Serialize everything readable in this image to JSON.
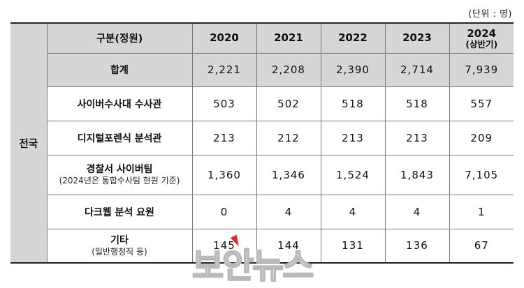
{
  "unit_label": "(단위 : 명)",
  "region": "전국",
  "header": {
    "category": "구분(정원)",
    "years": [
      {
        "main": "2020",
        "sub": ""
      },
      {
        "main": "2021",
        "sub": ""
      },
      {
        "main": "2022",
        "sub": ""
      },
      {
        "main": "2023",
        "sub": ""
      },
      {
        "main": "2024",
        "sub": "(상반기)"
      }
    ]
  },
  "rows": [
    {
      "label": "합계",
      "sub": "",
      "values": [
        "2,221",
        "2,208",
        "2,390",
        "2,714",
        "7,939"
      ]
    },
    {
      "label": "사이버수사대 수사관",
      "sub": "",
      "values": [
        "503",
        "502",
        "518",
        "518",
        "557"
      ]
    },
    {
      "label": "디지털포렌식 분석관",
      "sub": "",
      "values": [
        "213",
        "212",
        "213",
        "213",
        "209"
      ]
    },
    {
      "label": "경찰서 사이버팀",
      "sub": "(2024년은 통합수사팀 현원 기준)",
      "values": [
        "1,360",
        "1,346",
        "1,524",
        "1,843",
        "7,105"
      ]
    },
    {
      "label": "다크웹 분석 요원",
      "sub": "",
      "values": [
        "0",
        "4",
        "4",
        "4",
        "1"
      ]
    },
    {
      "label": "기타",
      "sub": "(일반행정직 등)",
      "values": [
        "145",
        "144",
        "131",
        "136",
        "67"
      ]
    }
  ],
  "watermark": "보안뉴스",
  "colors": {
    "header_bg": "#d6d6d6",
    "border": "#7a7a7a",
    "watermark_accent": "#e0262b"
  }
}
